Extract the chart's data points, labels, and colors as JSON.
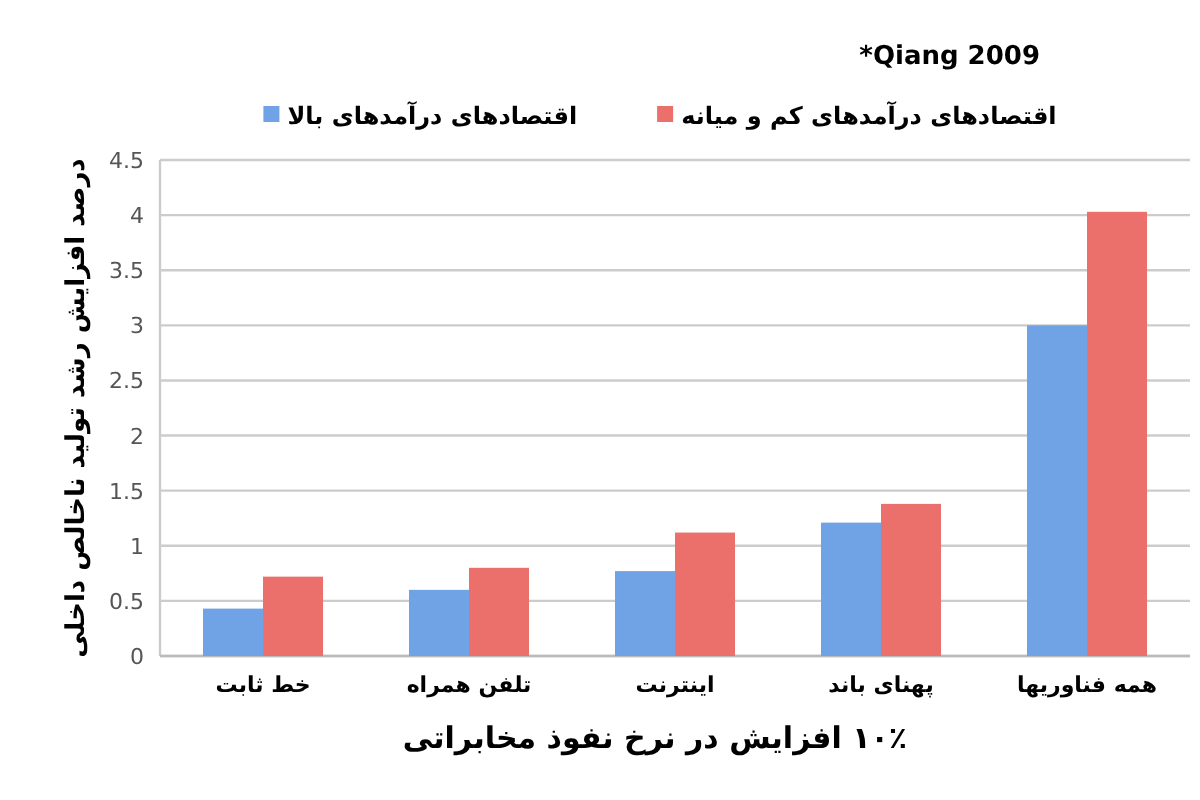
{
  "chart_data": {
    "type": "bar",
    "categories": [
      "خط ثابت",
      "تلفن همراه",
      "اینترنت",
      "پهنای باند",
      "همه فناوریها"
    ],
    "series": [
      {
        "name": "اقتصادهای درآمدهای بالا",
        "color": "#6fa3e6",
        "values": [
          0.43,
          0.6,
          0.77,
          1.21,
          3.0
        ]
      },
      {
        "name": "اقتصادهای درآمدهای کم و میانه",
        "color": "#eb6f6a",
        "values": [
          0.72,
          0.8,
          1.12,
          1.38,
          4.03
        ]
      }
    ],
    "xlabel": "۱۰٪ افزایش در نرخ نفوذ مخابراتی",
    "ylabel": "درصد افزایش رشد تولید ناخالص داخلی",
    "annotations": [
      "*Qiang 2009"
    ],
    "ylim": [
      0,
      4.5
    ],
    "yticks": [
      0,
      0.5,
      1,
      1.5,
      2,
      2.5,
      3,
      3.5,
      4,
      4.5
    ],
    "grid": "y",
    "legend": "top"
  }
}
